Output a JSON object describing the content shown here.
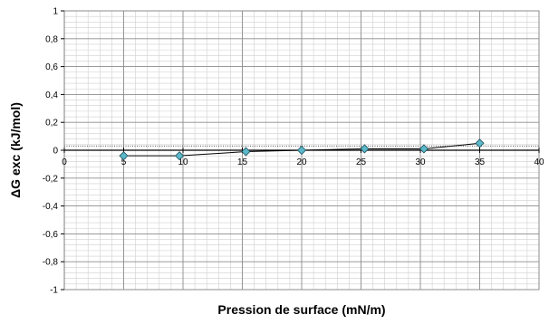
{
  "chart_data": {
    "type": "line",
    "xlabel": "Pression de surface (mN/m)",
    "ylabel": "ΔG exc (kJ/mol)",
    "xlim": [
      0,
      40
    ],
    "ylim": [
      -1,
      1
    ],
    "x_major_step": 5,
    "y_major_step": 0.2,
    "x_minor_step": 1,
    "y_minor_step": 0.04,
    "grid": true,
    "x_tick_labels": [
      "0",
      "5",
      "10",
      "15",
      "20",
      "25",
      "30",
      "35",
      "40"
    ],
    "y_tick_labels": [
      "1",
      "0,8",
      "0,6",
      "0,4",
      "0,2",
      "0",
      "-0,2",
      "-0,4",
      "-0,6",
      "-0,8",
      "-1"
    ],
    "reference_line_y": 0.03,
    "series": [
      {
        "x": [
          5,
          9.7,
          15.3,
          20,
          25.3,
          30.3,
          35
        ],
        "y": [
          -0.04,
          -0.04,
          -0.01,
          0.0,
          0.01,
          0.01,
          0.05
        ],
        "marker": "diamond",
        "marker_color": "#5bb8c9",
        "line_color": "#000000"
      }
    ]
  }
}
